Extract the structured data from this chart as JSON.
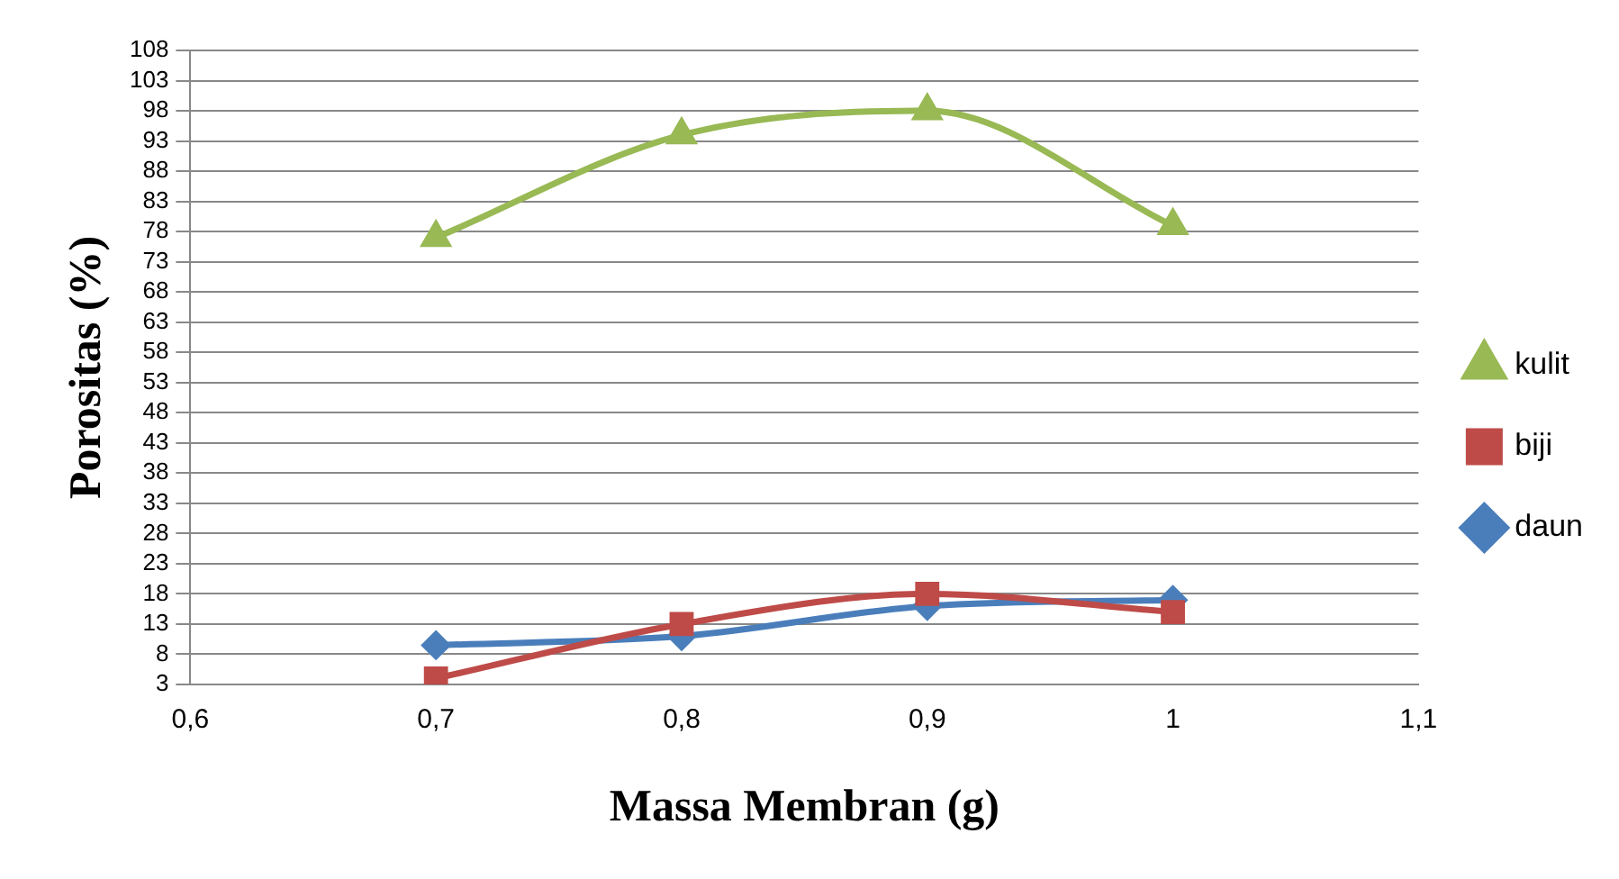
{
  "chart_data": {
    "type": "line",
    "xlabel": "Massa Membran (g)",
    "ylabel": "Porositas (%)",
    "x": [
      0.7,
      0.8,
      0.9,
      1.0
    ],
    "series": [
      {
        "name": "daun",
        "color": "#4a7ebb",
        "marker": "diamond",
        "values": [
          9.5,
          11,
          16,
          17
        ]
      },
      {
        "name": "biji",
        "color": "#be4b48",
        "marker": "square",
        "values": [
          4,
          13,
          18,
          15
        ]
      },
      {
        "name": "kulit",
        "color": "#98b954",
        "marker": "triangle",
        "values": [
          77,
          94,
          98,
          79
        ]
      }
    ],
    "xlim": [
      0.6,
      1.1
    ],
    "xticks": [
      {
        "value": 0.6,
        "label": "0,6"
      },
      {
        "value": 0.7,
        "label": "0,7"
      },
      {
        "value": 0.8,
        "label": "0,8"
      },
      {
        "value": 0.9,
        "label": "0,9"
      },
      {
        "value": 1.0,
        "label": "1"
      },
      {
        "value": 1.1,
        "label": "1,1"
      }
    ],
    "ylim": [
      3,
      108
    ],
    "yticks": [
      3,
      8,
      13,
      18,
      23,
      28,
      33,
      38,
      43,
      48,
      53,
      58,
      63,
      68,
      73,
      78,
      83,
      88,
      93,
      98,
      103,
      108
    ],
    "grid": "y",
    "legend": "right",
    "line_style": "solid"
  }
}
